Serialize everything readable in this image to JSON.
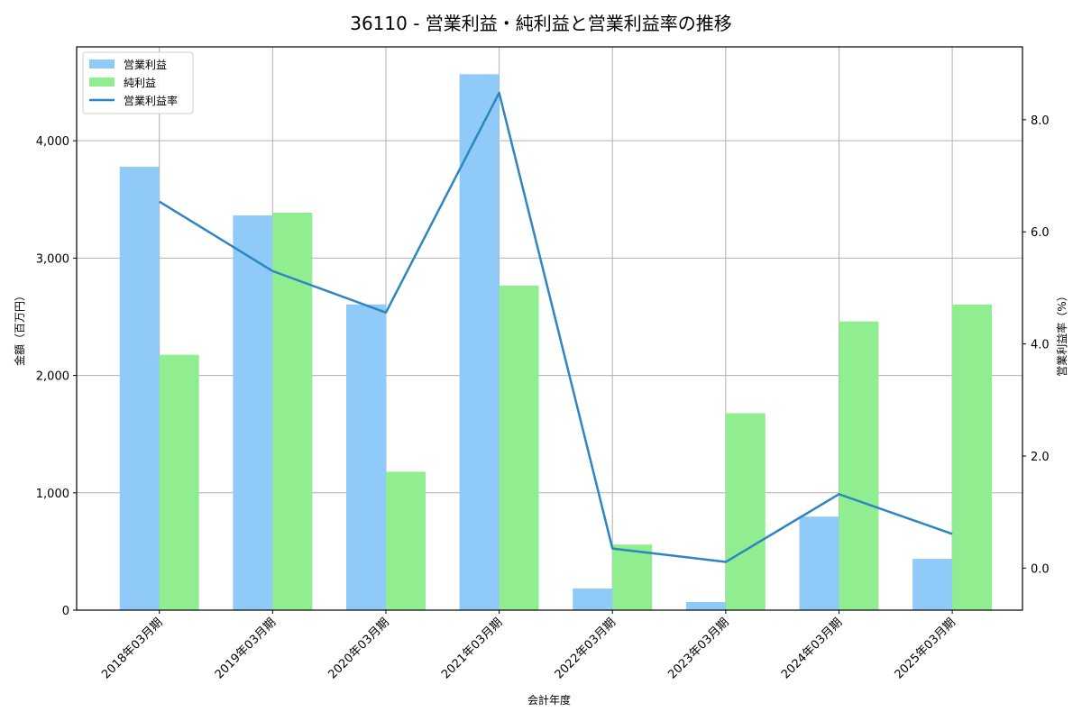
{
  "chart_data": {
    "type": "bar",
    "title": "36110 - 営業利益・純利益と営業利益率の推移",
    "xlabel": "会計年度",
    "ylabel": "金額（百万円）",
    "y2label": "営業利益率（%）",
    "categories": [
      "2018年03月期",
      "2019年03月期",
      "2020年03月期",
      "2021年03月期",
      "2022年03月期",
      "2023年03月期",
      "2024年03月期",
      "2025年03月期"
    ],
    "series": [
      {
        "name": "営業利益",
        "type": "bar",
        "axis": "left",
        "color": "#90caf9",
        "values": [
          3778,
          3364,
          2605,
          4567,
          184,
          69,
          797,
          437
        ]
      },
      {
        "name": "純利益",
        "type": "bar",
        "axis": "left",
        "color": "#90ee90",
        "values": [
          2176,
          3387,
          1180,
          2766,
          559,
          1678,
          2460,
          2605
        ]
      },
      {
        "name": "営業利益率",
        "type": "line",
        "axis": "right",
        "color": "#2e86c1",
        "values": [
          6.54,
          5.3,
          4.56,
          8.48,
          0.35,
          0.11,
          1.32,
          0.61
        ]
      }
    ],
    "ylim": [
      0,
      4800
    ],
    "y2lim": [
      -0.75,
      9.3
    ],
    "yticks": [
      0,
      1000,
      2000,
      3000,
      4000
    ],
    "ytick_labels": [
      "0",
      "1,000",
      "2,000",
      "3,000",
      "4,000"
    ],
    "y2ticks": [
      0,
      2,
      4,
      6,
      8
    ],
    "y2tick_labels": [
      "0.0",
      "2.0",
      "4.0",
      "6.0",
      "8.0"
    ],
    "grid": true,
    "legend_position": "upper left"
  }
}
